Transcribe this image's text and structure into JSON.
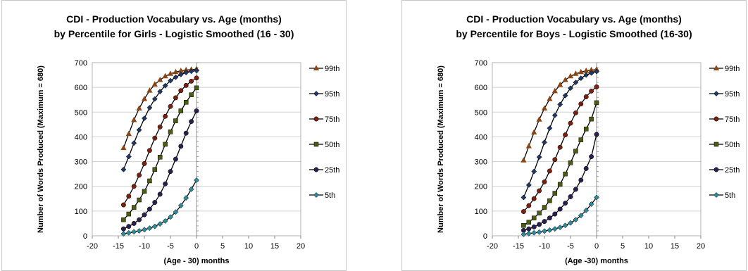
{
  "chart_data": [
    {
      "type": "line",
      "title": "CDI - Production Vocabulary vs. Age (months)",
      "subtitle": "by Percentile for Girls - Logistic Smoothed (16 - 30)",
      "xlabel": "(Age - 30) months",
      "ylabel": "Number of Words Produced (Maximum = 680)",
      "xlim": [
        -20,
        20
      ],
      "ylim": [
        0,
        700
      ],
      "xticks": [
        -20,
        -15,
        -10,
        -5,
        0,
        5,
        10,
        15,
        20
      ],
      "yticks": [
        0,
        100,
        200,
        300,
        400,
        500,
        600,
        700
      ],
      "grid": true,
      "legend_position": "right",
      "x": [
        -14,
        -13,
        -12,
        -11,
        -10,
        -9,
        -8,
        -7,
        -6,
        -5,
        -4,
        -3,
        -2,
        -1,
        0
      ],
      "series": [
        {
          "name": "99th",
          "color": "#8B4513",
          "marker": "triangle",
          "values": [
            355,
            412,
            468,
            515,
            553,
            587,
            612,
            630,
            645,
            655,
            662,
            667,
            670,
            672,
            674
          ]
        },
        {
          "name": "95th",
          "color": "#1F3864",
          "marker": "diamond",
          "values": [
            268,
            320,
            375,
            428,
            475,
            518,
            553,
            583,
            607,
            627,
            641,
            652,
            660,
            665,
            668
          ]
        },
        {
          "name": "75th",
          "color": "#7B1F0F",
          "marker": "circle",
          "values": [
            125,
            160,
            200,
            245,
            292,
            345,
            395,
            440,
            483,
            523,
            558,
            587,
            608,
            625,
            638
          ]
        },
        {
          "name": "50th",
          "color": "#4A5E12",
          "marker": "square",
          "values": [
            65,
            88,
            115,
            145,
            180,
            222,
            268,
            318,
            370,
            420,
            465,
            505,
            540,
            570,
            598
          ]
        },
        {
          "name": "25th",
          "color": "#2B1F4F",
          "marker": "circle",
          "values": [
            28,
            38,
            50,
            65,
            85,
            108,
            135,
            168,
            210,
            260,
            310,
            362,
            415,
            462,
            505
          ]
        },
        {
          "name": "5th",
          "color": "#2E8B9A",
          "marker": "diamond",
          "values": [
            8,
            12,
            16,
            20,
            25,
            31,
            38,
            48,
            60,
            76,
            96,
            122,
            153,
            188,
            225
          ]
        }
      ]
    },
    {
      "type": "line",
      "title": "CDI - Production Vocabulary vs. Age (months)",
      "subtitle": "by Percentile for Boys - Logistic Smoothed (16-30)",
      "xlabel": "(Age -30) months",
      "ylabel": "Number of Words Produced (Maximum = 680)",
      "xlim": [
        -20,
        20
      ],
      "ylim": [
        0,
        700
      ],
      "xticks": [
        -20,
        -15,
        -10,
        -5,
        0,
        5,
        10,
        15,
        20
      ],
      "yticks": [
        0,
        100,
        200,
        300,
        400,
        500,
        600,
        700
      ],
      "grid": true,
      "legend_position": "right",
      "x": [
        -14,
        -13,
        -12,
        -11,
        -10,
        -9,
        -8,
        -7,
        -6,
        -5,
        -4,
        -3,
        -2,
        -1,
        0
      ],
      "series": [
        {
          "name": "99th",
          "color": "#8B4513",
          "marker": "triangle",
          "values": [
            305,
            362,
            418,
            470,
            515,
            553,
            585,
            610,
            630,
            645,
            655,
            662,
            667,
            670,
            672
          ]
        },
        {
          "name": "95th",
          "color": "#1F3864",
          "marker": "diamond",
          "values": [
            155,
            205,
            260,
            318,
            378,
            435,
            487,
            531,
            567,
            597,
            620,
            637,
            650,
            658,
            664
          ]
        },
        {
          "name": "75th",
          "color": "#7B1F0F",
          "marker": "circle",
          "values": [
            98,
            122,
            150,
            182,
            218,
            262,
            308,
            358,
            408,
            455,
            497,
            533,
            562,
            585,
            602
          ]
        },
        {
          "name": "50th",
          "color": "#4A5E12",
          "marker": "square",
          "values": [
            42,
            55,
            72,
            92,
            115,
            142,
            172,
            208,
            250,
            295,
            342,
            388,
            432,
            472,
            538
          ]
        },
        {
          "name": "25th",
          "color": "#2B1F4F",
          "marker": "circle",
          "values": [
            22,
            28,
            36,
            46,
            58,
            72,
            88,
            108,
            132,
            158,
            188,
            225,
            272,
            320,
            410
          ]
        },
        {
          "name": "5th",
          "color": "#2E8B9A",
          "marker": "diamond",
          "values": [
            6,
            9,
            12,
            15,
            19,
            23,
            28,
            34,
            42,
            52,
            65,
            82,
            103,
            128,
            155
          ]
        }
      ]
    }
  ]
}
